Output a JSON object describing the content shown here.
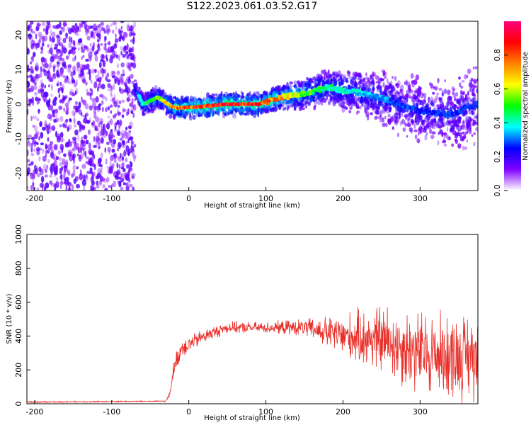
{
  "title": "S122.2023.061.03.52.G17",
  "chart_data": [
    {
      "type": "heatmap",
      "xlabel": "Height of straight line (km)",
      "ylabel": "Frequency (Hz)",
      "xlim": [
        -210,
        375
      ],
      "ylim": [
        -25,
        24
      ],
      "xticks": [
        -200,
        -100,
        0,
        100,
        200,
        300
      ],
      "yticks": [
        20,
        10,
        0,
        -10,
        -20
      ],
      "colorbar": {
        "label": "Normalized spectral amplitude",
        "range": [
          0,
          1
        ],
        "ticks": [
          "0.0",
          "0.2",
          "0.4",
          "0.6",
          "0.8"
        ],
        "colors": [
          "#ffffff",
          "#8000ff",
          "#0000ff",
          "#00ffff",
          "#00ff00",
          "#ffff00",
          "#ff8000",
          "#ff0000",
          "#ff0080"
        ]
      },
      "ridge": {
        "x": [
          -70,
          -60,
          -40,
          -20,
          0,
          50,
          90,
          120,
          150,
          180,
          200,
          230,
          260,
          300,
          340,
          375
        ],
        "y": [
          5,
          0,
          2,
          -1,
          -1,
          0,
          0,
          2,
          3,
          5,
          4,
          3,
          1,
          -2,
          -3,
          0
        ],
        "peak_amplitude": [
          0.3,
          0.5,
          0.6,
          0.85,
          0.9,
          1.0,
          0.95,
          0.8,
          0.6,
          0.5,
          0.45,
          0.4,
          0.35,
          0.3,
          0.3,
          0.3
        ]
      },
      "noise_region_x": [
        -210,
        -70
      ]
    },
    {
      "type": "line",
      "xlabel": "Height of straight line (km)",
      "ylabel": "SNR (10 * v/v)",
      "xlim": [
        -210,
        375
      ],
      "ylim": [
        0,
        1000
      ],
      "xticks": [
        -200,
        -100,
        0,
        100,
        200,
        300
      ],
      "yticks": [
        0,
        200,
        400,
        600,
        800,
        1000
      ],
      "color": "#e8302a",
      "envelope": {
        "x": [
          -210,
          -30,
          -25,
          -20,
          -10,
          0,
          20,
          50,
          100,
          150,
          200,
          250,
          300,
          350,
          375
        ],
        "mean": [
          10,
          15,
          50,
          200,
          330,
          350,
          400,
          450,
          450,
          450,
          400,
          380,
          300,
          280,
          290
        ],
        "spread": [
          5,
          5,
          20,
          60,
          80,
          60,
          50,
          40,
          40,
          60,
          150,
          250,
          300,
          300,
          300
        ]
      }
    }
  ]
}
